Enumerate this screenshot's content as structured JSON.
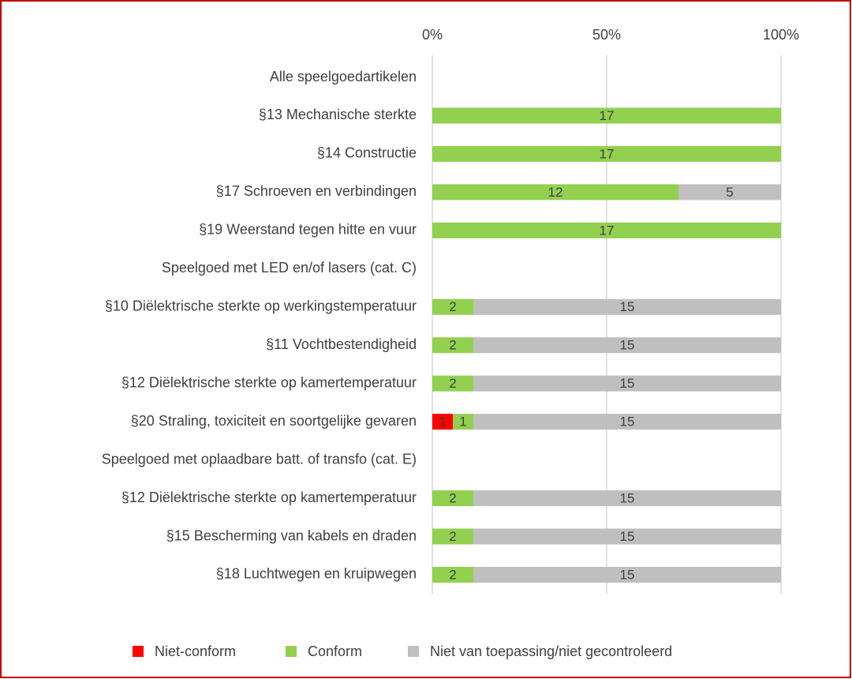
{
  "chart_data": {
    "type": "stacked_bar_100_horizontal",
    "categories": [
      "Alle speelgoedartikelen",
      "§13 Mechanische sterkte",
      "§14 Constructie",
      "§17 Schroeven en verbindingen",
      "§19 Weerstand tegen hitte en vuur",
      "Speelgoed met LED en/of lasers (cat. C)",
      "§10 Diëlektrische sterkte op werkingstemperatuur",
      "§11 Vochtbestendigheid",
      "§12 Diëlektrische sterkte op kamertemperatuur",
      "§20 Straling, toxiciteit en soortgelijke gevaren",
      "Speelgoed met oplaadbare batt. of transfo (cat. E)",
      "§12 Diëlektrische sterkte op kamertemperatuur",
      "§15 Bescherming van kabels en draden",
      "§18 Luchtwegen en kruipwegen"
    ],
    "series": [
      {
        "name": "Niet-conform",
        "color": "#ff0000",
        "values": [
          null,
          null,
          null,
          null,
          null,
          null,
          null,
          null,
          null,
          1,
          null,
          null,
          null,
          null
        ]
      },
      {
        "name": "Conform",
        "color": "#92d050",
        "values": [
          null,
          17,
          17,
          12,
          17,
          null,
          2,
          2,
          2,
          1,
          null,
          2,
          2,
          2
        ]
      },
      {
        "name": "Niet van toepassing/niet gecontroleerd",
        "color": "#bfbfbf",
        "values": [
          null,
          null,
          null,
          5,
          null,
          null,
          15,
          15,
          15,
          15,
          null,
          15,
          15,
          15
        ]
      }
    ],
    "xlim": [
      0,
      100
    ],
    "xticks": [
      {
        "value": 0,
        "label": "0%"
      },
      {
        "value": 50,
        "label": "50%"
      },
      {
        "value": 100,
        "label": "100%"
      }
    ],
    "grid": true,
    "legend": "bottom"
  }
}
